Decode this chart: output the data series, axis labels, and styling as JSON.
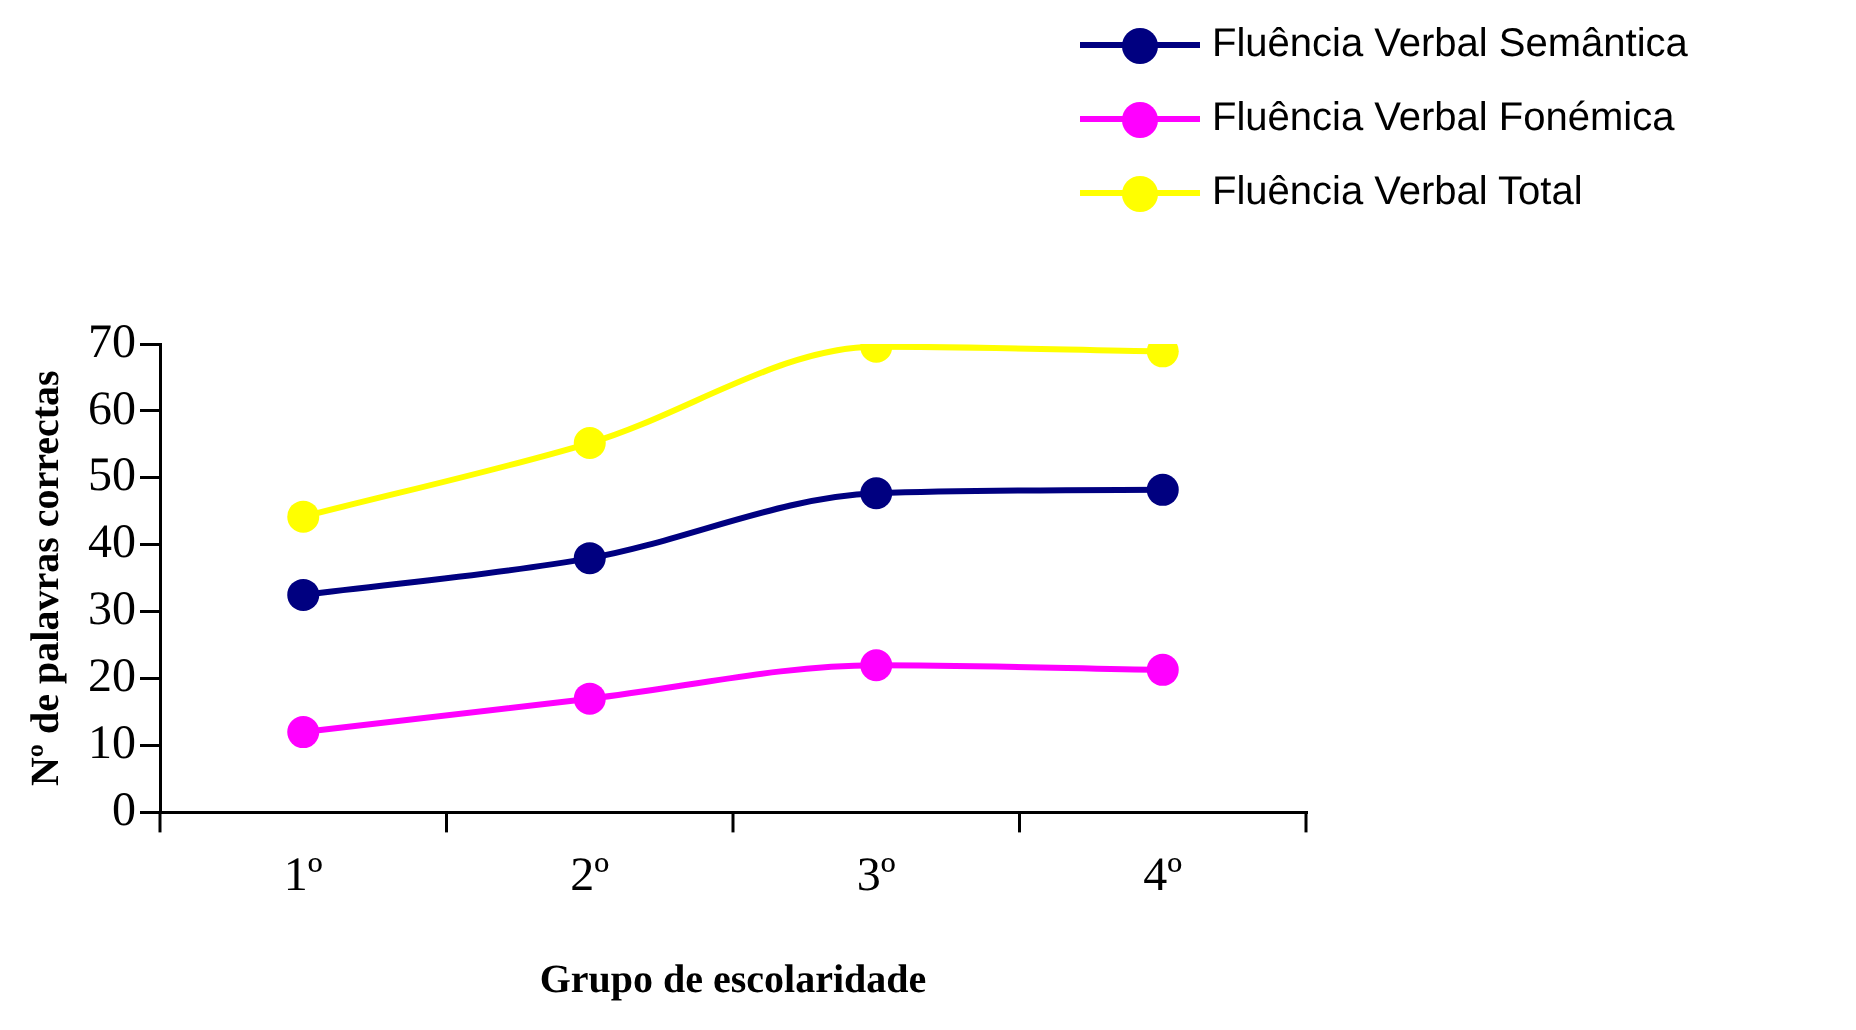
{
  "chart_data": {
    "type": "line",
    "xlabel": "Grupo de escolaridade",
    "ylabel": "Nº de palavras correctas",
    "categories": [
      "1º",
      "2º",
      "3º",
      "4º"
    ],
    "series": [
      {
        "name": "Fluência Verbal Semântica",
        "color": "#000080",
        "values": [
          32.5,
          38,
          47.7,
          48.2
        ]
      },
      {
        "name": "Fluência Verbal Fonémica",
        "color": "#ff00ff",
        "values": [
          12,
          17,
          22,
          21.3
        ]
      },
      {
        "name": "Fluência Verbal Total",
        "color": "#ffff00",
        "values": [
          44.2,
          55.2,
          69.6,
          68.9
        ]
      }
    ],
    "ylim": [
      0,
      70
    ],
    "yticks": [
      0,
      10,
      20,
      30,
      40,
      50,
      60,
      70
    ],
    "grid": false,
    "legend": "top right",
    "marker": "circle",
    "line_style": "solid"
  }
}
